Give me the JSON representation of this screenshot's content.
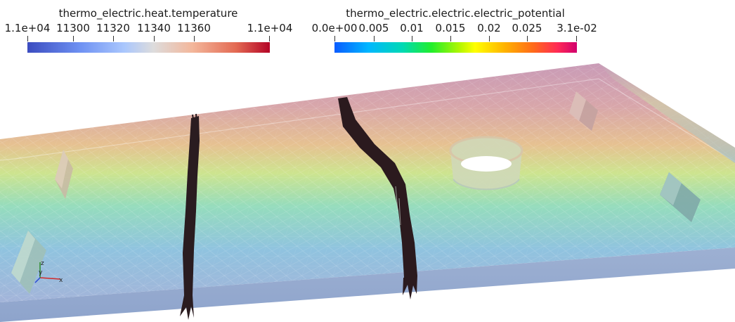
{
  "colorbars": {
    "temperature": {
      "title": "thermo_electric.heat.temperature",
      "tick_labels": [
        "1.1e+04",
        "11300",
        "11320",
        "11340",
        "11360",
        "1.1e+04"
      ],
      "colors": [
        "#3b4cc0",
        "#6f92f3",
        "#aac7fd",
        "#dddcdc",
        "#f3b79b",
        "#e36a53",
        "#b40426"
      ]
    },
    "potential": {
      "title": "thermo_electric.electric.electric_potential",
      "tick_labels": [
        "0.0e+00",
        "0.005",
        "0.01",
        "0.015",
        "0.02",
        "0.025",
        "3.1e-02"
      ],
      "colors": [
        "#0a5cff",
        "#00b7ff",
        "#00d9b5",
        "#21ee2c",
        "#ffff00",
        "#ffb400",
        "#ff6a1a",
        "#d1006e"
      ]
    }
  },
  "axes": {
    "x": "x",
    "y": "y",
    "z": "z"
  },
  "scene": {
    "plate_gradient": [
      "#c89ab6",
      "#d9a9a6",
      "#e8c18e",
      "#cfe38d",
      "#8fdcbf",
      "#8ec1e0",
      "#a0b6dc"
    ],
    "contour_color": "#1e1418"
  }
}
